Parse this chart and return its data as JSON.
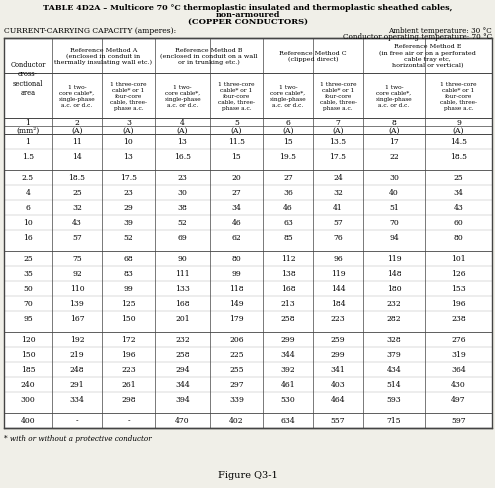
{
  "title_line1": "TABLE 4D2A – Multicore 70 °C thermoplastic insulated and thermoplastic sheathed cables,",
  "title_line2": "non-armoured",
  "title_line3": "(COPPER CONDUCTORS)",
  "ambient_temp": "Ambient temperature: 30 °C",
  "conductor_temp": "Conductor operating temperature: 70 °C",
  "capacity_label": "CURRENT-CARRYING CAPACITY (amperes):",
  "footnote": "* with or without a protective conductor",
  "figure_label": "Figure Q3-1",
  "col_numbers": [
    "1",
    "2",
    "3",
    "4",
    "5",
    "6",
    "7",
    "8",
    "9"
  ],
  "col_units": [
    "(mm²)",
    "(A)",
    "(A)",
    "(A)",
    "(A)",
    "(A)",
    "(A)",
    "(A)",
    "(A)"
  ],
  "method_texts": [
    "Reference Method A\n(enclosed in conduit in\nthermally insulating wall etc.)",
    "Reference Method B\n(enclosed in conduit on a wall\nor in trunking etc.)",
    "Reference Method C\n(clipped direct)",
    "Reference Method E\n(in free air or on a perforated\ncable tray etc,\nhorizontal or vertical)"
  ],
  "sub_headers": [
    "1 two-\ncore cable*,\nsingle-phase\na.c. or d.c.",
    "1 three-core\ncable* or 1\nfour-core\ncable, three-\nphase a.c.",
    "1 two-\ncore cable*,\nsingle-phase\na.c. or d.c.",
    "1 three-core\ncable* or 1\nfour-core\ncable, three-\nphase a.c.",
    "1 two-\ncore cable*,\nsingle-phase\na.c. or d.c.",
    "1 three-core\ncable* or 1\nfour-core\ncable, three-\nphase a.c.",
    "1 two-\ncore cable*,\nsingle-phase\na.c. or d.c.",
    "1 three-core\ncable* or 1\nfour-core\ncable, three-\nphase a.c."
  ],
  "conductor_col_header": "Conductor\ncross-\nsectional\narea",
  "rows": [
    [
      "1",
      "11",
      "10",
      "13",
      "11.5",
      "15",
      "13.5",
      "17",
      "14.5"
    ],
    [
      "1.5",
      "14",
      "13",
      "16.5",
      "15",
      "19.5",
      "17.5",
      "22",
      "18.5"
    ],
    [
      "2.5",
      "18.5",
      "17.5",
      "23",
      "20",
      "27",
      "24",
      "30",
      "25"
    ],
    [
      "4",
      "25",
      "23",
      "30",
      "27",
      "36",
      "32",
      "40",
      "34"
    ],
    [
      "6",
      "32",
      "29",
      "38",
      "34",
      "46",
      "41",
      "51",
      "43"
    ],
    [
      "10",
      "43",
      "39",
      "52",
      "46",
      "63",
      "57",
      "70",
      "60"
    ],
    [
      "16",
      "57",
      "52",
      "69",
      "62",
      "85",
      "76",
      "94",
      "80"
    ],
    [
      "25",
      "75",
      "68",
      "90",
      "80",
      "112",
      "96",
      "119",
      "101"
    ],
    [
      "35",
      "92",
      "83",
      "111",
      "99",
      "138",
      "119",
      "148",
      "126"
    ],
    [
      "50",
      "110",
      "99",
      "133",
      "118",
      "168",
      "144",
      "180",
      "153"
    ],
    [
      "70",
      "139",
      "125",
      "168",
      "149",
      "213",
      "184",
      "232",
      "196"
    ],
    [
      "95",
      "167",
      "150",
      "201",
      "179",
      "258",
      "223",
      "282",
      "238"
    ],
    [
      "120",
      "192",
      "172",
      "232",
      "206",
      "299",
      "259",
      "328",
      "276"
    ],
    [
      "150",
      "219",
      "196",
      "258",
      "225",
      "344",
      "299",
      "379",
      "319"
    ],
    [
      "185",
      "248",
      "223",
      "294",
      "255",
      "392",
      "341",
      "434",
      "364"
    ],
    [
      "240",
      "291",
      "261",
      "344",
      "297",
      "461",
      "403",
      "514",
      "430"
    ],
    [
      "300",
      "334",
      "298",
      "394",
      "339",
      "530",
      "464",
      "593",
      "497"
    ],
    [
      "400",
      "-",
      "-",
      "470",
      "402",
      "634",
      "557",
      "715",
      "597"
    ]
  ],
  "bg_color": "#f0efe8",
  "table_bg": "#ffffff",
  "border_color": "#444444"
}
